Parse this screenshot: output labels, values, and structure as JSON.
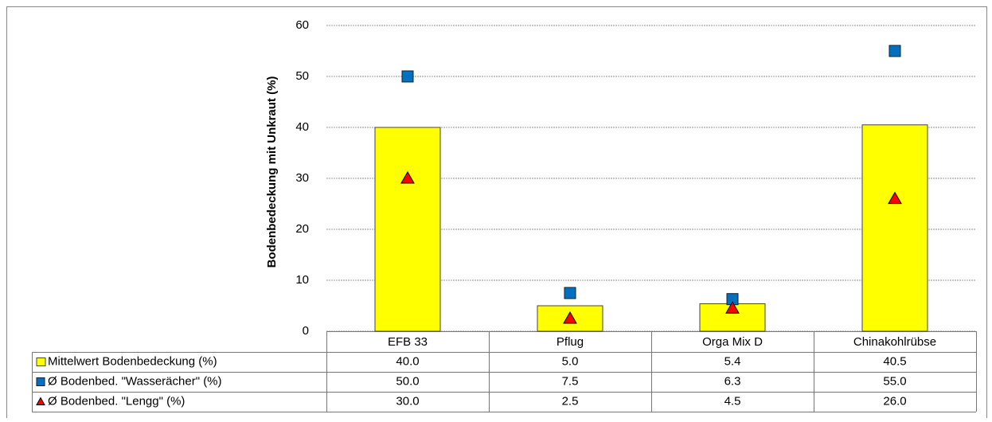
{
  "chart_data": {
    "type": "bar",
    "y_label": "Bodenbedeckung mit Unkraut (%)",
    "categories": [
      "EFB 33",
      "Pflug",
      "Orga Mix D",
      "Chinakohlrübse"
    ],
    "series": [
      {
        "name": "Mittelwert Bodenbedeckung (%)",
        "type": "bar",
        "color": "#ffff00",
        "values": [
          40.0,
          5.0,
          5.4,
          40.5
        ],
        "value_labels": [
          "40.0",
          "5.0",
          "5.4",
          "40.5"
        ]
      },
      {
        "name": "Ø Bodenbed. \"Wasserächer\" (%)",
        "type": "square",
        "color": "#0070c0",
        "values": [
          50.0,
          7.5,
          6.3,
          55.0
        ],
        "value_labels": [
          "50.0",
          "7.5",
          "6.3",
          "55.0"
        ]
      },
      {
        "name": "Ø Bodenbed. \"Lengg\" (%)",
        "type": "triangle",
        "color": "#ff0000",
        "values": [
          30.0,
          2.5,
          4.5,
          26.0
        ],
        "value_labels": [
          "30.0",
          "2.5",
          "4.5",
          "26.0"
        ]
      }
    ],
    "ylim": [
      0,
      60
    ],
    "yticks": [
      0,
      10,
      20,
      30,
      40,
      50,
      60
    ],
    "grid": true
  }
}
